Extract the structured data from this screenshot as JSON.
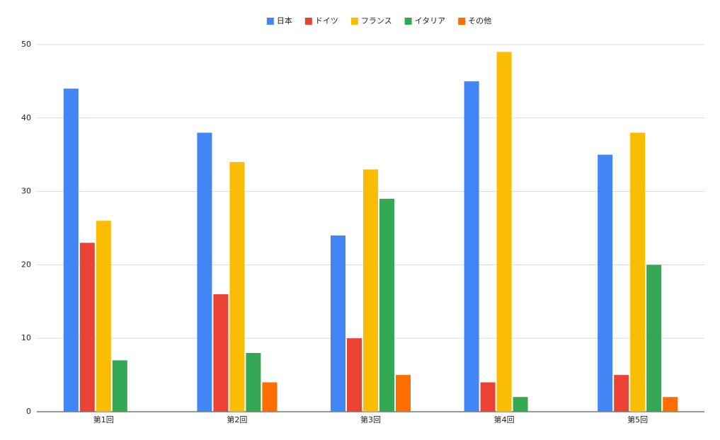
{
  "chart_data": {
    "type": "bar",
    "categories": [
      "第1回",
      "第2回",
      "第3回",
      "第4回",
      "第5回"
    ],
    "series": [
      {
        "name": "日本",
        "color": "#4285f4",
        "values": [
          44,
          38,
          24,
          45,
          35
        ]
      },
      {
        "name": "ドイツ",
        "color": "#ea4335",
        "values": [
          23,
          16,
          10,
          4,
          5
        ]
      },
      {
        "name": "フランス",
        "color": "#fbbc04",
        "values": [
          26,
          34,
          33,
          49,
          38
        ]
      },
      {
        "name": "イタリア",
        "color": "#34a853",
        "values": [
          7,
          8,
          29,
          2,
          20
        ]
      },
      {
        "name": "その他",
        "color": "#ff6d01",
        "values": [
          0,
          4,
          5,
          0,
          2
        ]
      }
    ],
    "ylim": [
      0,
      50
    ],
    "yticks": [
      0,
      10,
      20,
      30,
      40,
      50
    ],
    "grid": true,
    "legend": "top"
  }
}
